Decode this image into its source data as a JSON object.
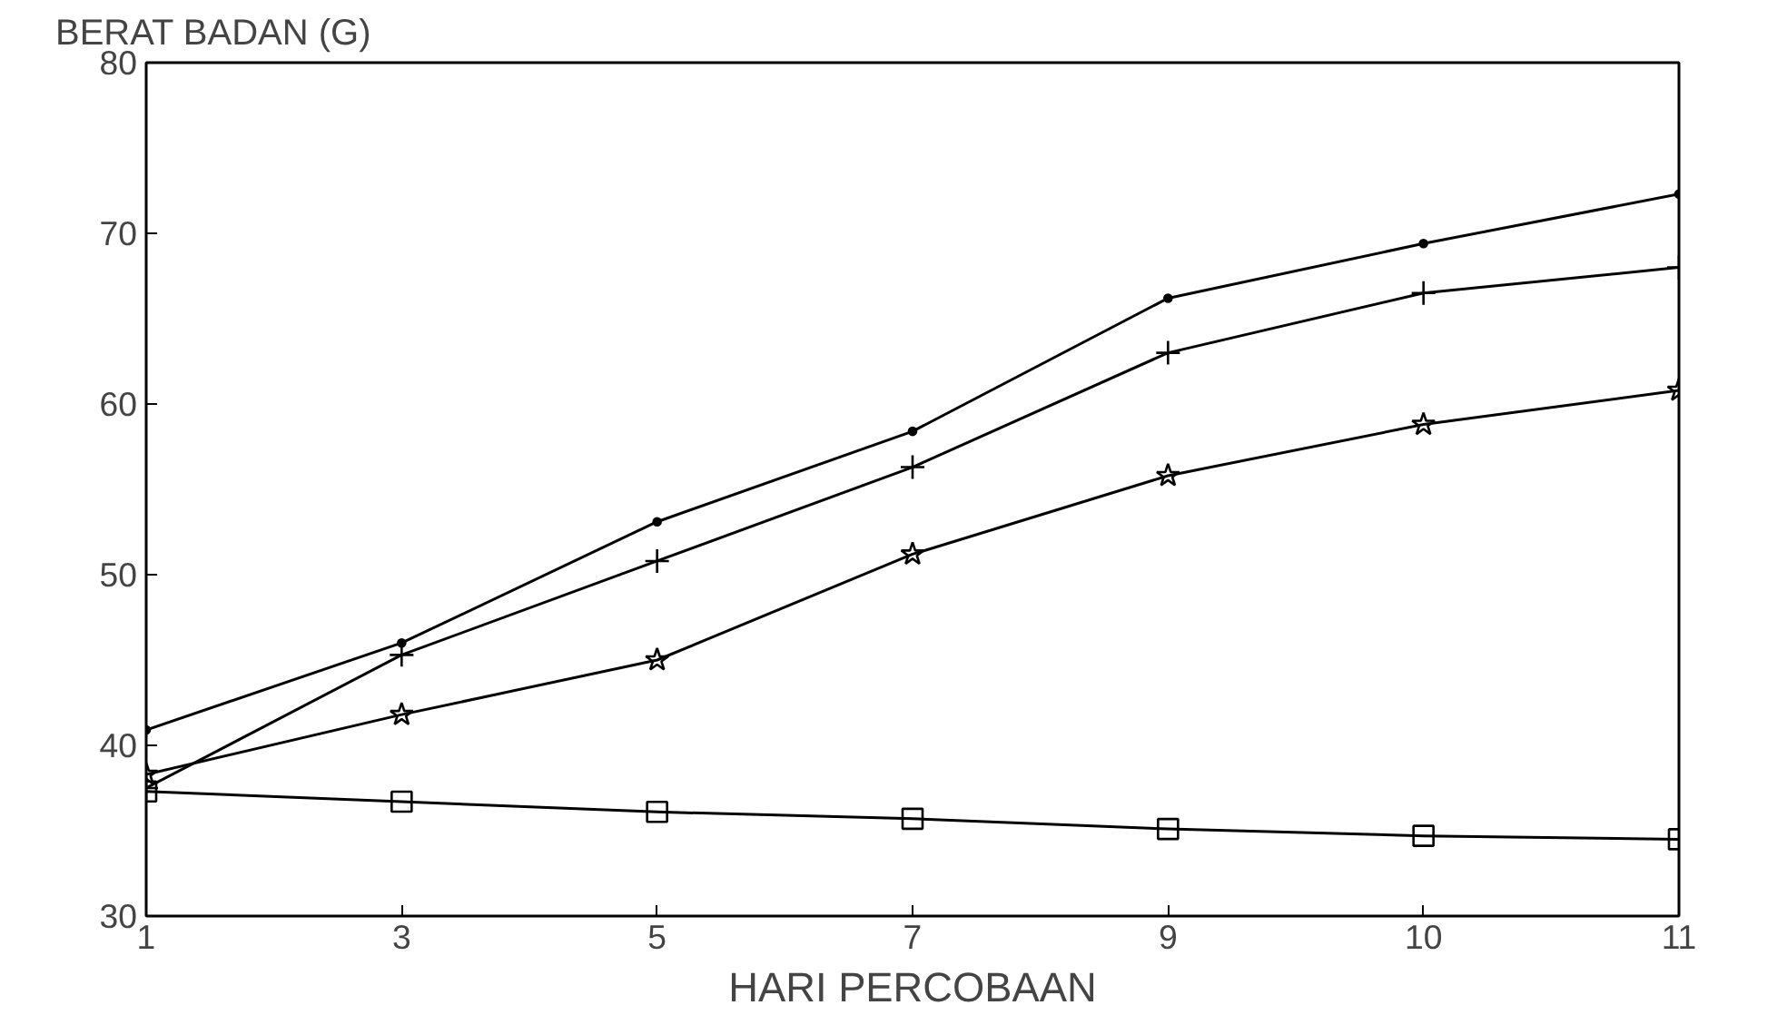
{
  "chart_data": {
    "type": "line",
    "ylabel": "BERAT BADAN (G)",
    "xlabel": "HARI PERCOBAAN",
    "categories": [
      "1",
      "3",
      "5",
      "7",
      "9",
      "10",
      "11"
    ],
    "series": [
      {
        "color": "#000000",
        "marker": "circle",
        "values": [
          40.9,
          46.0,
          53.1,
          58.4,
          66.2,
          69.4,
          72.3
        ]
      },
      {
        "color": "#000000",
        "marker": "cross",
        "values": [
          37.5,
          45.3,
          50.8,
          56.3,
          63.0,
          66.5,
          68.0
        ]
      },
      {
        "color": "#000000",
        "marker": "star",
        "values": [
          38.3,
          41.8,
          45.0,
          51.2,
          55.8,
          58.8,
          60.8
        ]
      },
      {
        "color": "#000000",
        "marker": "square",
        "values": [
          37.3,
          36.7,
          36.1,
          35.7,
          35.1,
          34.7,
          34.5
        ]
      }
    ],
    "ylim": [
      30,
      80
    ],
    "yticks": [
      30,
      40,
      50,
      60,
      70,
      80
    ],
    "grid": false
  }
}
